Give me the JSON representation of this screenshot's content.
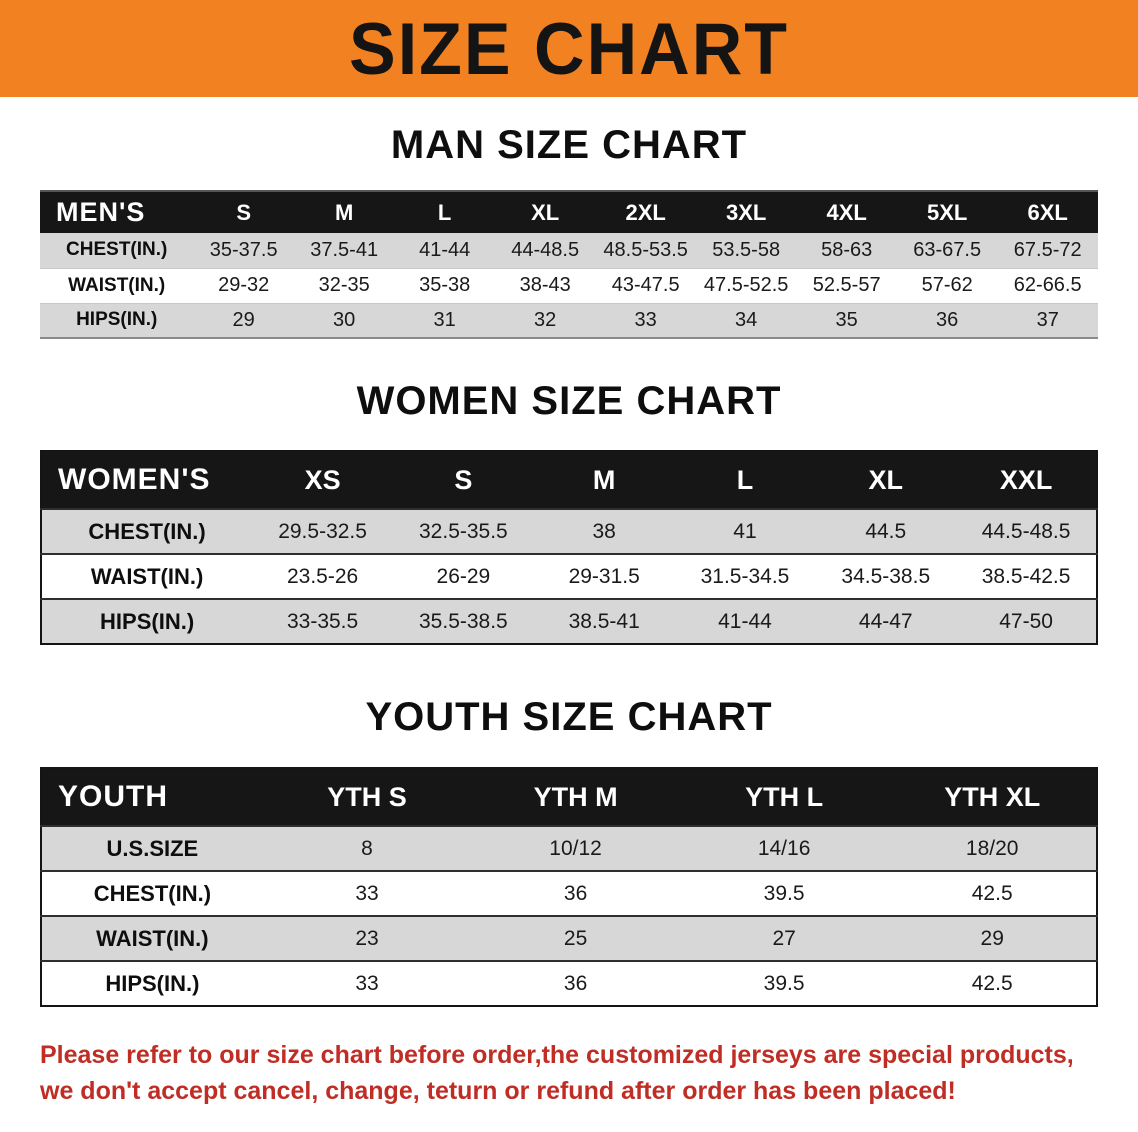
{
  "banner": {
    "title": "SIZE CHART"
  },
  "colors": {
    "banner_bg": "#f28121",
    "table_header_bg": "#161616",
    "row_alt": "#d7d7d7",
    "footer_text": "#bf2d25"
  },
  "tables": [
    {
      "id": "men",
      "heading": "MAN SIZE CHART",
      "columns": [
        "MEN'S",
        "S",
        "M",
        "L",
        "XL",
        "2XL",
        "3XL",
        "4XL",
        "5XL",
        "6XL"
      ],
      "rows": [
        [
          "CHEST(IN.)",
          "35-37.5",
          "37.5-41",
          "41-44",
          "44-48.5",
          "48.5-53.5",
          "53.5-58",
          "58-63",
          "63-67.5",
          "67.5-72"
        ],
        [
          "WAIST(IN.)",
          "29-32",
          "32-35",
          "35-38",
          "38-43",
          "43-47.5",
          "47.5-52.5",
          "52.5-57",
          "57-62",
          "62-66.5"
        ],
        [
          "HIPS(IN.)",
          "29",
          "30",
          "31",
          "32",
          "33",
          "34",
          "35",
          "36",
          "37"
        ]
      ]
    },
    {
      "id": "women",
      "heading": "WOMEN SIZE CHART",
      "columns": [
        "WOMEN'S",
        "XS",
        "S",
        "M",
        "L",
        "XL",
        "XXL"
      ],
      "rows": [
        [
          "CHEST(IN.)",
          "29.5-32.5",
          "32.5-35.5",
          "38",
          "41",
          "44.5",
          "44.5-48.5"
        ],
        [
          "WAIST(IN.)",
          "23.5-26",
          "26-29",
          "29-31.5",
          "31.5-34.5",
          "34.5-38.5",
          "38.5-42.5"
        ],
        [
          "HIPS(IN.)",
          "33-35.5",
          "35.5-38.5",
          "38.5-41",
          "41-44",
          "44-47",
          "47-50"
        ]
      ]
    },
    {
      "id": "youth",
      "heading": "YOUTH SIZE CHART",
      "columns": [
        "YOUTH",
        "YTH S",
        "YTH M",
        "YTH L",
        "YTH XL"
      ],
      "rows": [
        [
          "U.S.SIZE",
          "8",
          "10/12",
          "14/16",
          "18/20"
        ],
        [
          "CHEST(IN.)",
          "33",
          "36",
          "39.5",
          "42.5"
        ],
        [
          "WAIST(IN.)",
          "23",
          "25",
          "27",
          "29"
        ],
        [
          "HIPS(IN.)",
          "33",
          "36",
          "39.5",
          "42.5"
        ]
      ]
    }
  ],
  "footer": {
    "line1": "Please refer to our size chart before order,the customized jerseys are special products,",
    "line2": "we don't accept cancel, change, teturn or refund after order has been placed!"
  }
}
